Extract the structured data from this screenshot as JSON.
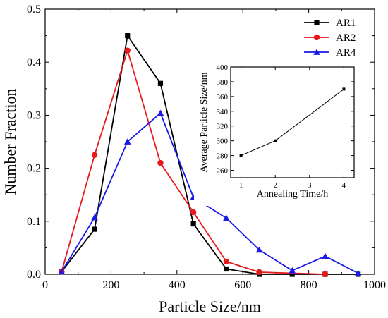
{
  "chart_data": [
    {
      "type": "line",
      "xlabel": "Particle Size/nm",
      "ylabel": "Number Fraction",
      "xlim": [
        0,
        1000
      ],
      "ylim": [
        0,
        0.5
      ],
      "x_ticks": [
        0,
        200,
        400,
        600,
        800,
        1000
      ],
      "y_ticks": [
        0.0,
        0.1,
        0.2,
        0.3,
        0.4,
        0.5
      ],
      "x_tick_labels": [
        "0",
        "200",
        "400",
        "600",
        "800",
        "1000"
      ],
      "y_tick_labels": [
        "0.0",
        "0.1",
        "0.2",
        "0.3",
        "0.4",
        "0.5"
      ],
      "legend_position": "top-right",
      "series": [
        {
          "name": "AR1",
          "color": "#000000",
          "marker": "square",
          "x": [
            50,
            150,
            250,
            350,
            450,
            550,
            650,
            750,
            850,
            950
          ],
          "y": [
            0.005,
            0.085,
            0.45,
            0.36,
            0.095,
            0.01,
            0.0,
            0.0,
            0.0,
            0.0
          ]
        },
        {
          "name": "AR2",
          "color": "#e8191c",
          "marker": "circle",
          "x": [
            50,
            150,
            250,
            350,
            450,
            550,
            650,
            850
          ],
          "y": [
            0.005,
            0.225,
            0.422,
            0.21,
            0.117,
            0.024,
            0.004,
            0.0
          ]
        },
        {
          "name": "AR4",
          "color": "#1a1ae6",
          "marker": "triangle",
          "x": [
            50,
            150,
            250,
            350,
            450,
            550,
            650,
            750,
            850,
            950
          ],
          "y": [
            0.005,
            0.107,
            0.25,
            0.304,
            0.145,
            0.106,
            0.046,
            0.007,
            0.034,
            0.002
          ]
        }
      ]
    },
    {
      "type": "line",
      "role": "inset",
      "xlabel": "Annealing Time/h",
      "ylabel": "Average Particle Size/nm",
      "xlim": [
        0.7,
        4.3
      ],
      "ylim": [
        250,
        400
      ],
      "x_ticks": [
        1,
        2,
        3,
        4
      ],
      "y_ticks": [
        260,
        280,
        300,
        320,
        340,
        360,
        380,
        400
      ],
      "x_tick_labels": [
        "1",
        "2",
        "3",
        "4"
      ],
      "y_tick_labels": [
        "260",
        "280",
        "300",
        "320",
        "340",
        "360",
        "380",
        "400"
      ],
      "series": [
        {
          "color": "#000000",
          "marker": "square",
          "x": [
            1,
            2,
            4
          ],
          "y": [
            280,
            300,
            370
          ]
        }
      ]
    }
  ]
}
